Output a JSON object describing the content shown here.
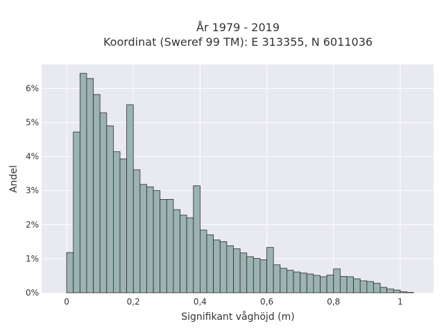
{
  "chart_data": {
    "type": "bar",
    "title": "År 1979 - 2019",
    "subtitle": "Koordinat (Sweref 99 TM): E 313355, N 6011036",
    "xlabel": "Signifikant våghöjd (m)",
    "ylabel": "Andel",
    "xlim": [
      -0.075,
      1.1
    ],
    "ylim": [
      0,
      0.067
    ],
    "x_ticks": [
      0,
      0.2,
      0.4,
      0.6,
      0.8,
      1
    ],
    "x_tick_labels": [
      "0",
      "0,2",
      "0,4",
      "0,6",
      "0,8",
      "1"
    ],
    "y_ticks": [
      0,
      0.01,
      0.02,
      0.03,
      0.04,
      0.05,
      0.06
    ],
    "y_tick_labels": [
      "0%",
      "1%",
      "2%",
      "3%",
      "4%",
      "5%",
      "6%"
    ],
    "grid": true,
    "bin_width": 0.02,
    "bin_starts": [
      0,
      0.02,
      0.04,
      0.06,
      0.08,
      0.1,
      0.12,
      0.14,
      0.16,
      0.18,
      0.2,
      0.22,
      0.24,
      0.26,
      0.28,
      0.3,
      0.32,
      0.34,
      0.36,
      0.38,
      0.4,
      0.42,
      0.44,
      0.46,
      0.48,
      0.5,
      0.52,
      0.54,
      0.56,
      0.58,
      0.6,
      0.62,
      0.64,
      0.66,
      0.68,
      0.7,
      0.72,
      0.74,
      0.76,
      0.78,
      0.8,
      0.82,
      0.84,
      0.86,
      0.88,
      0.9,
      0.92,
      0.94,
      0.96,
      0.98,
      1.0,
      1.02,
      1.04
    ],
    "values": [
      0.0118,
      0.0472,
      0.0644,
      0.0629,
      0.0582,
      0.0528,
      0.049,
      0.0414,
      0.0393,
      0.0552,
      0.0361,
      0.0318,
      0.0311,
      0.03,
      0.0274,
      0.0274,
      0.0244,
      0.0228,
      0.022,
      0.0314,
      0.0184,
      0.017,
      0.0155,
      0.015,
      0.0138,
      0.0129,
      0.0117,
      0.0106,
      0.0101,
      0.0097,
      0.0133,
      0.0082,
      0.0072,
      0.0066,
      0.0061,
      0.0058,
      0.0055,
      0.0051,
      0.0047,
      0.0052,
      0.007,
      0.0048,
      0.0047,
      0.0041,
      0.0035,
      0.0033,
      0.0028,
      0.0016,
      0.0011,
      0.0008,
      0.0003,
      0.0001,
      0.0
    ],
    "colors": {
      "bar_fill": "#9bb3b1",
      "bar_stroke": "#2b2b2b",
      "plot_background": "#e8e9f1",
      "grid": "#ffffff",
      "text": "#333333"
    }
  }
}
